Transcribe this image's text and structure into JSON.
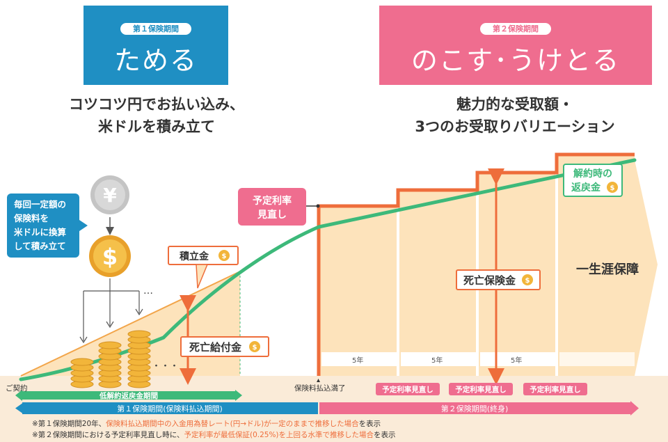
{
  "phase1": {
    "tag": "第１保険期間",
    "title": "ためる",
    "desc_line1": "コツコツ円でお払い込み、",
    "desc_line2": "米ドルを積み立て",
    "color": "#1f8fc3"
  },
  "phase2": {
    "tag": "第２保険期間",
    "title": "のこす･うけとる",
    "desc_line1": "魅力的な受取額・",
    "desc_line2": "3つのお受取りバリエーション",
    "color": "#ef6d8f"
  },
  "diagram": {
    "yen_symbol": "¥",
    "dollar_symbol": "$",
    "monthly_box": [
      "毎回一定額の",
      "保険料を",
      "米ドルに換算",
      "して積み立て"
    ],
    "ellipsis": "…",
    "dots": "・・・",
    "accumulation_label": "積立金",
    "death_benefit_label": "死亡給付金",
    "rate_review_label": [
      "予定利率",
      "見直し"
    ],
    "death_insurance_label": "死亡保険金",
    "surrender_label": [
      "解約時の",
      "返戻金"
    ],
    "lifetime_label": "一生涯保障",
    "five_years": "5年",
    "low_surrender_label": "低解約返戻金期間",
    "contract_label": "ご契約",
    "payment_complete_label": "保険料払込満了",
    "rate_review_badge": "予定利率見直し",
    "phase1_arrow_label": "第１保険期間(保険料払込期間)",
    "phase2_arrow_label": "第２保険期間(終身)"
  },
  "footnotes": {
    "fn1_a": "※第１保険期間20年、",
    "fn1_b": "保険料払込期間中の入金用為替レート(円→ドル)が一定のままで推移した場合",
    "fn1_c": "を表示",
    "fn2_a": "※第２保険期間における予定利率見直し時に、",
    "fn2_b": "予定利率が最低保証(0.25%)を上回る水準で推移した場合",
    "fn2_c": "を表示"
  },
  "colors": {
    "blue": "#1f8fc3",
    "pink": "#ef6d8f",
    "green": "#3db97a",
    "orange": "#ee6d3b",
    "fill": "#fde3bb",
    "ground": "#faebd8",
    "coin": "#f2b53a"
  }
}
